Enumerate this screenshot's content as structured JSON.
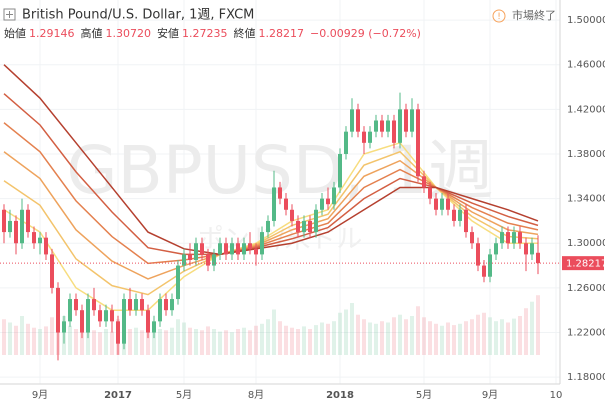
{
  "chart_data": {
    "type": "candlestick",
    "title": "British Pound/U.S. Dollar, 1週, FXCM",
    "ohlc": [
      {
        "label": "始値",
        "value": "1.29146"
      },
      {
        "label": "高値",
        "value": "1.30720"
      },
      {
        "label": "安値",
        "value": "1.27235"
      },
      {
        "label": "終値",
        "value": "1.28217"
      }
    ],
    "change": "−0.00929 (−0.72%)",
    "status": "市場終了",
    "watermark": "GBPUSD, 1週",
    "watermark_sub": "ポンド/米ドル",
    "up_color": "#53b987",
    "down_color": "#eb4d5c",
    "grid": true,
    "ylim": [
      1.164,
      1.518
    ],
    "yticks": [
      {
        "value": 1.5,
        "label": "1.50000"
      },
      {
        "value": 1.46,
        "label": "1.46000"
      },
      {
        "value": 1.42,
        "label": "1.42000"
      },
      {
        "value": 1.38,
        "label": "1.38000"
      },
      {
        "value": 1.34,
        "label": "1.34000"
      },
      {
        "value": 1.3,
        "label": "1.30000"
      },
      {
        "value": 1.26,
        "label": "1.26000"
      },
      {
        "value": 1.22,
        "label": "1.22000"
      },
      {
        "value": 1.18,
        "label": "1.18000"
      }
    ],
    "categories": [
      null,
      null,
      null,
      null,
      null,
      null,
      "9月",
      null,
      null,
      null,
      null,
      null,
      null,
      null,
      null,
      null,
      null,
      null,
      null,
      "2017",
      null,
      null,
      null,
      null,
      null,
      null,
      null,
      null,
      null,
      null,
      "5月",
      null,
      null,
      null,
      null,
      null,
      null,
      null,
      null,
      null,
      null,
      null,
      "8月",
      null,
      null,
      null,
      null,
      null,
      null,
      null,
      null,
      null,
      null,
      null,
      null,
      null,
      "2018",
      null,
      null,
      null,
      null,
      null,
      null,
      null,
      null,
      null,
      null,
      null,
      null,
      null,
      "5月",
      null,
      null,
      null,
      null,
      null,
      null,
      null,
      null,
      null,
      null,
      "9月",
      null,
      null,
      null,
      null,
      null,
      null,
      null,
      null,
      null,
      null,
      "10"
    ],
    "candles": [
      [
        1.33,
        1.335,
        1.3,
        1.31
      ],
      [
        1.31,
        1.33,
        1.305,
        1.32
      ],
      [
        1.32,
        1.325,
        1.29,
        1.3
      ],
      [
        1.3,
        1.34,
        1.295,
        1.33
      ],
      [
        1.33,
        1.335,
        1.305,
        1.31
      ],
      [
        1.31,
        1.315,
        1.295,
        1.3
      ],
      [
        1.3,
        1.31,
        1.29,
        1.305
      ],
      [
        1.305,
        1.31,
        1.285,
        1.29
      ],
      [
        1.29,
        1.295,
        1.255,
        1.26
      ],
      [
        1.26,
        1.265,
        1.195,
        1.22
      ],
      [
        1.22,
        1.235,
        1.21,
        1.23
      ],
      [
        1.23,
        1.255,
        1.225,
        1.25
      ],
      [
        1.25,
        1.255,
        1.235,
        1.24
      ],
      [
        1.24,
        1.245,
        1.215,
        1.22
      ],
      [
        1.22,
        1.255,
        1.215,
        1.25
      ],
      [
        1.25,
        1.26,
        1.235,
        1.24
      ],
      [
        1.24,
        1.245,
        1.225,
        1.23
      ],
      [
        1.23,
        1.245,
        1.225,
        1.24
      ],
      [
        1.24,
        1.245,
        1.22,
        1.23
      ],
      [
        1.23,
        1.235,
        1.2,
        1.21
      ],
      [
        1.21,
        1.255,
        1.205,
        1.25
      ],
      [
        1.25,
        1.26,
        1.235,
        1.24
      ],
      [
        1.24,
        1.255,
        1.235,
        1.25
      ],
      [
        1.25,
        1.255,
        1.235,
        1.24
      ],
      [
        1.24,
        1.245,
        1.215,
        1.22
      ],
      [
        1.22,
        1.235,
        1.215,
        1.23
      ],
      [
        1.23,
        1.255,
        1.225,
        1.25
      ],
      [
        1.25,
        1.255,
        1.235,
        1.24
      ],
      [
        1.24,
        1.255,
        1.235,
        1.25
      ],
      [
        1.25,
        1.285,
        1.245,
        1.28
      ],
      [
        1.28,
        1.295,
        1.275,
        1.29
      ],
      [
        1.29,
        1.3,
        1.28,
        1.285
      ],
      [
        1.285,
        1.305,
        1.28,
        1.3
      ],
      [
        1.3,
        1.305,
        1.285,
        1.29
      ],
      [
        1.29,
        1.295,
        1.275,
        1.28
      ],
      [
        1.28,
        1.295,
        1.275,
        1.29
      ],
      [
        1.29,
        1.305,
        1.285,
        1.3
      ],
      [
        1.3,
        1.305,
        1.285,
        1.29
      ],
      [
        1.29,
        1.305,
        1.285,
        1.3
      ],
      [
        1.3,
        1.305,
        1.285,
        1.29
      ],
      [
        1.29,
        1.305,
        1.285,
        1.3
      ],
      [
        1.3,
        1.31,
        1.29,
        1.295
      ],
      [
        1.295,
        1.3,
        1.28,
        1.29
      ],
      [
        1.29,
        1.315,
        1.285,
        1.31
      ],
      [
        1.31,
        1.325,
        1.305,
        1.32
      ],
      [
        1.32,
        1.365,
        1.315,
        1.35
      ],
      [
        1.35,
        1.355,
        1.335,
        1.34
      ],
      [
        1.34,
        1.345,
        1.325,
        1.33
      ],
      [
        1.33,
        1.335,
        1.315,
        1.32
      ],
      [
        1.32,
        1.325,
        1.305,
        1.31
      ],
      [
        1.31,
        1.325,
        1.305,
        1.32
      ],
      [
        1.32,
        1.325,
        1.305,
        1.31
      ],
      [
        1.31,
        1.335,
        1.305,
        1.33
      ],
      [
        1.33,
        1.345,
        1.325,
        1.34
      ],
      [
        1.34,
        1.35,
        1.33,
        1.335
      ],
      [
        1.335,
        1.355,
        1.33,
        1.35
      ],
      [
        1.35,
        1.385,
        1.345,
        1.38
      ],
      [
        1.38,
        1.405,
        1.375,
        1.4
      ],
      [
        1.4,
        1.43,
        1.395,
        1.42
      ],
      [
        1.42,
        1.425,
        1.395,
        1.4
      ],
      [
        1.4,
        1.405,
        1.38,
        1.39
      ],
      [
        1.39,
        1.405,
        1.385,
        1.4
      ],
      [
        1.4,
        1.415,
        1.395,
        1.41
      ],
      [
        1.41,
        1.415,
        1.395,
        1.4
      ],
      [
        1.4,
        1.415,
        1.395,
        1.41
      ],
      [
        1.41,
        1.415,
        1.385,
        1.39
      ],
      [
        1.39,
        1.435,
        1.385,
        1.42
      ],
      [
        1.42,
        1.425,
        1.395,
        1.4
      ],
      [
        1.4,
        1.43,
        1.395,
        1.42
      ],
      [
        1.42,
        1.425,
        1.355,
        1.36
      ],
      [
        1.36,
        1.365,
        1.345,
        1.35
      ],
      [
        1.35,
        1.355,
        1.335,
        1.34
      ],
      [
        1.34,
        1.345,
        1.325,
        1.33
      ],
      [
        1.33,
        1.345,
        1.325,
        1.34
      ],
      [
        1.34,
        1.345,
        1.325,
        1.33
      ],
      [
        1.33,
        1.335,
        1.315,
        1.32
      ],
      [
        1.32,
        1.335,
        1.315,
        1.33
      ],
      [
        1.33,
        1.335,
        1.305,
        1.31
      ],
      [
        1.31,
        1.315,
        1.295,
        1.3
      ],
      [
        1.3,
        1.305,
        1.275,
        1.28
      ],
      [
        1.28,
        1.285,
        1.265,
        1.27
      ],
      [
        1.27,
        1.295,
        1.265,
        1.29
      ],
      [
        1.29,
        1.305,
        1.285,
        1.3
      ],
      [
        1.3,
        1.315,
        1.295,
        1.31
      ],
      [
        1.31,
        1.315,
        1.295,
        1.3
      ],
      [
        1.3,
        1.315,
        1.295,
        1.31
      ],
      [
        1.31,
        1.315,
        1.295,
        1.3
      ],
      [
        1.3,
        1.305,
        1.275,
        1.29
      ],
      [
        1.29,
        1.305,
        1.285,
        1.3
      ],
      [
        1.29146,
        1.3072,
        1.27235,
        1.28217
      ],
      null,
      null,
      null
    ],
    "volume": [
      55,
      50,
      45,
      60,
      48,
      42,
      40,
      44,
      58,
      75,
      60,
      45,
      40,
      50,
      42,
      38,
      35,
      40,
      36,
      55,
      48,
      40,
      42,
      38,
      50,
      44,
      40,
      38,
      42,
      55,
      50,
      42,
      40,
      38,
      44,
      40,
      36,
      38,
      35,
      40,
      42,
      38,
      45,
      48,
      55,
      70,
      52,
      45,
      42,
      40,
      44,
      40,
      46,
      50,
      48,
      52,
      65,
      70,
      80,
      62,
      55,
      50,
      48,
      52,
      50,
      58,
      62,
      55,
      60,
      75,
      58,
      52,
      48,
      45,
      50,
      46,
      48,
      52,
      55,
      62,
      65,
      58,
      52,
      55,
      50,
      56,
      60,
      72,
      82,
      92,
      null,
      null,
      null
    ],
    "ribbon_x": [
      0,
      6,
      12,
      18,
      24,
      30,
      36,
      42,
      48,
      54,
      60,
      66,
      72,
      78,
      84,
      89
    ],
    "ribbons": [
      {
        "color": "#f7dd7f",
        "values": [
          1.33,
          1.31,
          1.26,
          1.24,
          1.24,
          1.27,
          1.29,
          1.3,
          1.32,
          1.33,
          1.38,
          1.39,
          1.35,
          1.32,
          1.3,
          1.3
        ]
      },
      {
        "color": "#f3c46c",
        "values": [
          1.356,
          1.334,
          1.286,
          1.262,
          1.254,
          1.275,
          1.29,
          1.299,
          1.316,
          1.326,
          1.37,
          1.382,
          1.35,
          1.324,
          1.306,
          1.304
        ]
      },
      {
        "color": "#eea35d",
        "values": [
          1.382,
          1.358,
          1.312,
          1.284,
          1.268,
          1.28,
          1.29,
          1.298,
          1.312,
          1.322,
          1.36,
          1.374,
          1.35,
          1.328,
          1.312,
          1.308
        ]
      },
      {
        "color": "#e4814f",
        "values": [
          1.408,
          1.382,
          1.338,
          1.306,
          1.282,
          1.285,
          1.29,
          1.297,
          1.308,
          1.318,
          1.35,
          1.366,
          1.35,
          1.332,
          1.318,
          1.312
        ]
      },
      {
        "color": "#d35f43",
        "values": [
          1.434,
          1.406,
          1.364,
          1.328,
          1.296,
          1.29,
          1.29,
          1.296,
          1.304,
          1.314,
          1.34,
          1.358,
          1.35,
          1.336,
          1.324,
          1.316
        ]
      },
      {
        "color": "#b5402f",
        "values": [
          1.46,
          1.43,
          1.39,
          1.35,
          1.31,
          1.295,
          1.29,
          1.295,
          1.3,
          1.31,
          1.33,
          1.35,
          1.35,
          1.34,
          1.33,
          1.32
        ]
      }
    ]
  }
}
